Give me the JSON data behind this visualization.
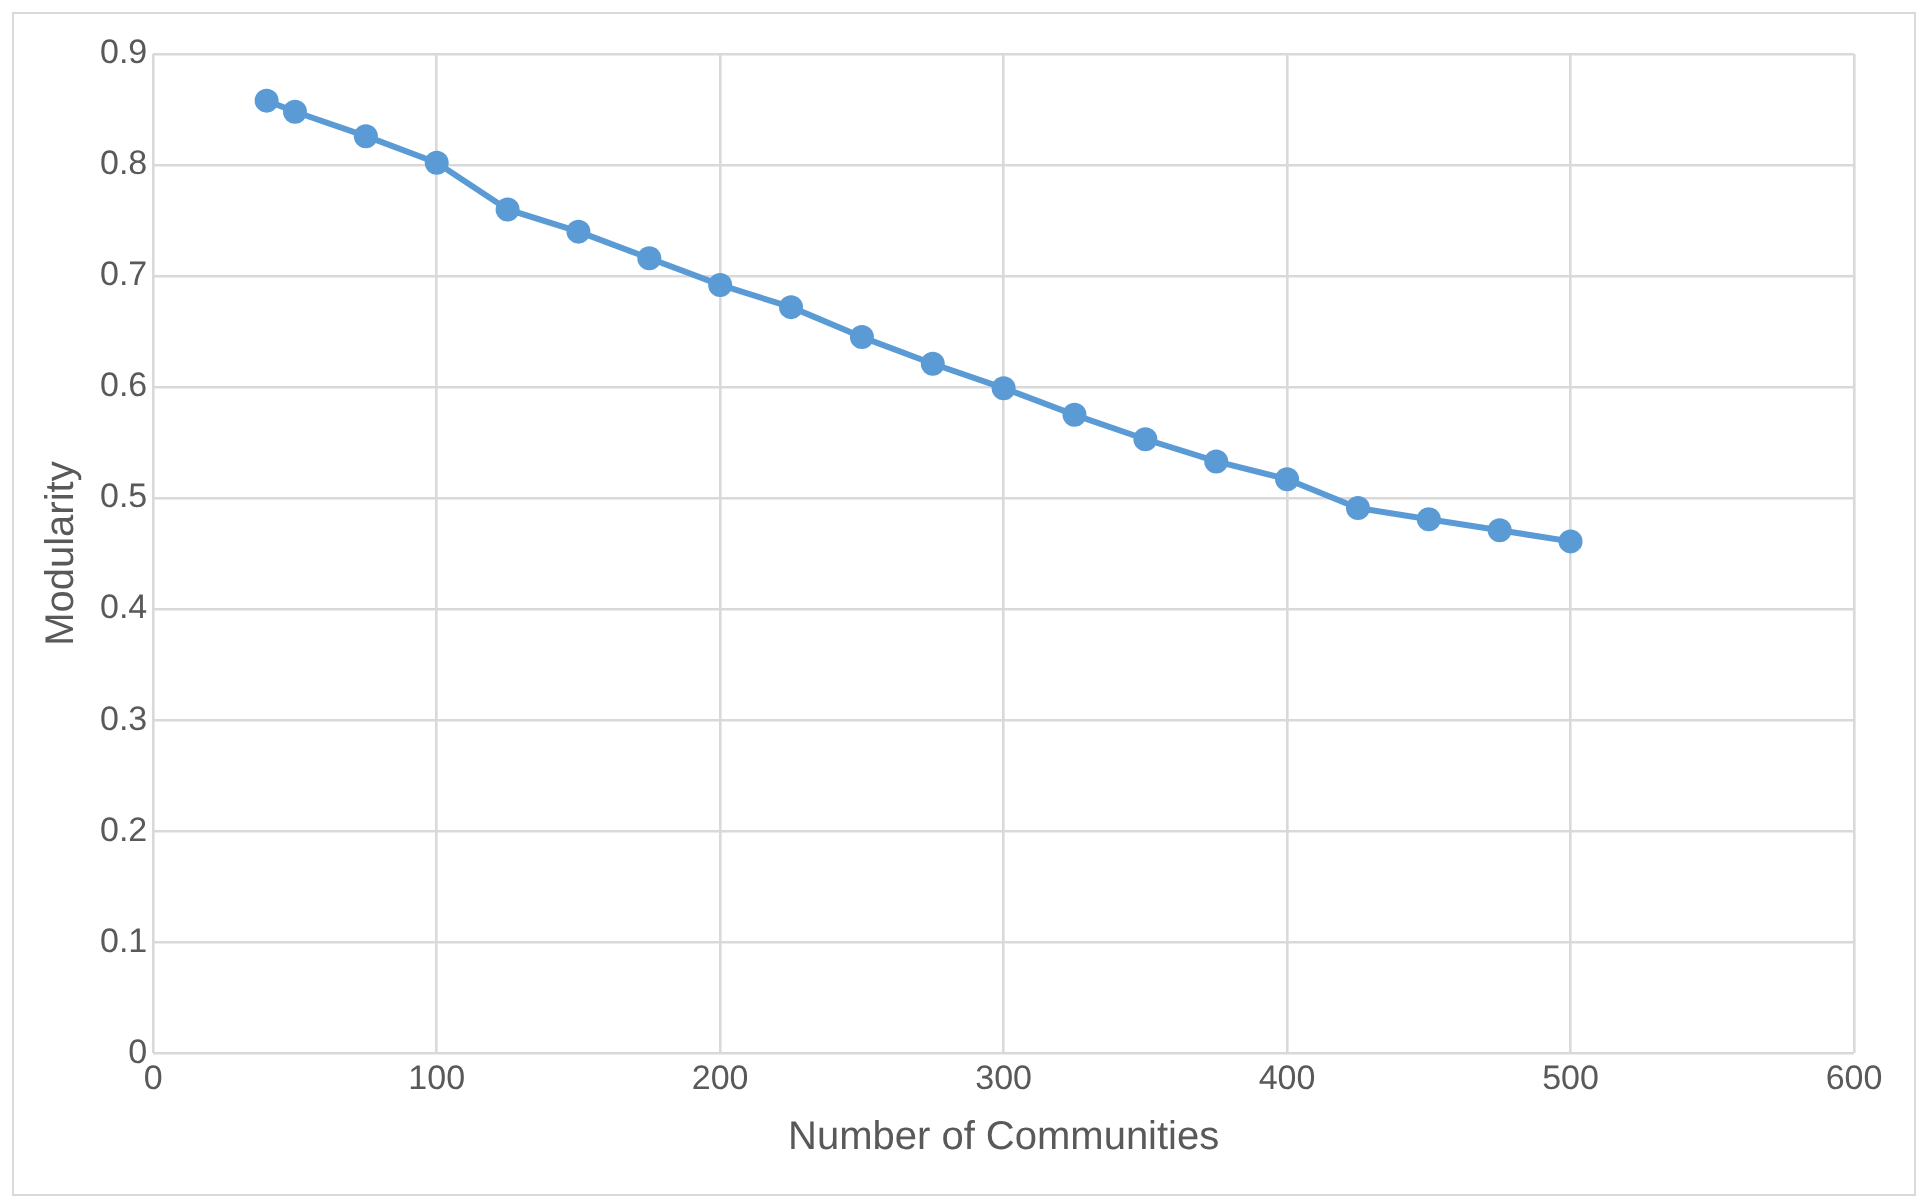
{
  "chart_data": {
    "type": "line",
    "xlabel": "Number of Communities",
    "ylabel": "Modularity",
    "x": [
      40,
      50,
      75,
      100,
      125,
      150,
      175,
      200,
      225,
      250,
      275,
      300,
      325,
      350,
      375,
      400,
      425,
      450,
      475,
      500
    ],
    "series": [
      {
        "color": "#5b9bd5",
        "values": [
          0.858,
          0.848,
          0.826,
          0.802,
          0.76,
          0.74,
          0.716,
          0.692,
          0.672,
          0.645,
          0.621,
          0.599,
          0.575,
          0.553,
          0.533,
          0.517,
          0.491,
          0.481,
          0.471,
          0.461
        ]
      }
    ],
    "xlim": [
      0,
      600
    ],
    "xticks": [
      0,
      100,
      200,
      300,
      400,
      500,
      600
    ],
    "ylim": [
      0,
      0.9
    ],
    "yticks": [
      0,
      0.1,
      0.2,
      0.3,
      0.4,
      0.5,
      0.6,
      0.7,
      0.8,
      0.9
    ],
    "grid": true,
    "legend": false,
    "marker": "circle",
    "line_style": "solid"
  }
}
